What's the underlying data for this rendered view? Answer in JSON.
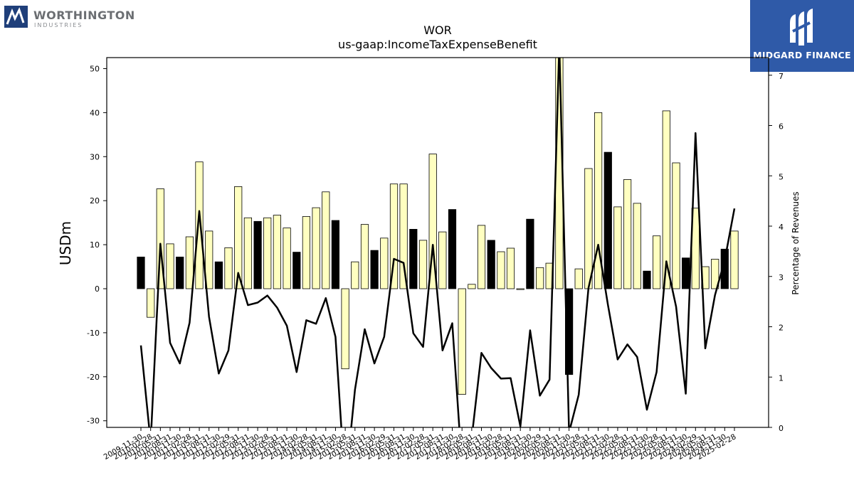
{
  "brand": {
    "name": "WORTHINGTON",
    "subtitle": "INDUSTRIES"
  },
  "badge": {
    "name": "MIDGARD FINANCE"
  },
  "chart_data": {
    "type": "bar+line",
    "title": "WOR",
    "subtitle": "us-gaap:IncomeTaxExpenseBenefit",
    "ylabel": "USDm",
    "y2label": "Percentage of Revenues",
    "ylim": [
      -31.5,
      52.5
    ],
    "y2lim": [
      0,
      7.35
    ],
    "yticks": [
      -30,
      -20,
      -10,
      0,
      10,
      20,
      30,
      40,
      50
    ],
    "y2ticks": [
      0,
      1,
      2,
      3,
      4,
      5,
      6,
      7
    ],
    "grid": false,
    "bar_colors": {
      "annual": "#000000",
      "quarter": "#ffffc0",
      "edge": "#000000"
    },
    "line_color": "#000000",
    "categories": [
      "2009-11-30",
      "2010-02-28",
      "2010-05-31",
      "2010-08-31",
      "2010-11-30",
      "2011-02-28",
      "2011-05-31",
      "2011-08-31",
      "2011-11-30",
      "2012-02-29",
      "2012-05-31",
      "2012-08-31",
      "2012-11-30",
      "2013-02-28",
      "2013-05-31",
      "2013-08-31",
      "2013-11-30",
      "2014-02-28",
      "2014-05-31",
      "2014-08-31",
      "2014-11-30",
      "2015-02-28",
      "2015-05-31",
      "2015-08-31",
      "2015-11-30",
      "2016-02-29",
      "2016-05-31",
      "2016-08-31",
      "2016-11-30",
      "2017-02-28",
      "2017-05-31",
      "2017-08-31",
      "2017-11-30",
      "2018-02-28",
      "2018-05-31",
      "2018-08-31",
      "2018-11-30",
      "2019-02-28",
      "2019-05-31",
      "2019-08-31",
      "2019-11-30",
      "2020-02-29",
      "2020-05-31",
      "2020-08-31",
      "2020-11-30",
      "2021-02-28",
      "2021-05-31",
      "2021-08-31",
      "2021-11-30",
      "2022-02-28",
      "2022-05-31",
      "2022-08-31",
      "2022-11-30",
      "2023-02-28",
      "2023-05-31",
      "2023-08-31",
      "2023-11-30",
      "2024-02-29",
      "2024-05-31",
      "2024-08-31",
      "2024-11-30",
      "2025-02-28"
    ],
    "values": [
      7.2,
      -6.5,
      22.7,
      10.2,
      7.2,
      11.8,
      28.8,
      13.1,
      6.1,
      9.3,
      23.2,
      16.1,
      15.3,
      16.1,
      16.7,
      13.8,
      8.3,
      16.4,
      18.4,
      22.0,
      15.5,
      -18.2,
      6.1,
      14.6,
      8.7,
      11.5,
      23.8,
      23.8,
      13.5,
      11.0,
      30.6,
      12.9,
      18.0,
      -24.0,
      1.0,
      14.4,
      11.0,
      8.4,
      9.2,
      -0.2,
      15.8,
      4.8,
      5.8,
      55.0,
      -19.5,
      4.5,
      27.3,
      40.0,
      31.0,
      18.6,
      24.8,
      19.4,
      4.0,
      12.0,
      40.4,
      28.6,
      7.0,
      18.3,
      5.0,
      6.7,
      9.0,
      13.1
    ],
    "annual": [
      true,
      false,
      false,
      false,
      true,
      false,
      false,
      false,
      true,
      false,
      false,
      false,
      true,
      false,
      false,
      false,
      true,
      false,
      false,
      false,
      true,
      false,
      false,
      false,
      true,
      false,
      false,
      false,
      true,
      false,
      false,
      false,
      true,
      false,
      false,
      false,
      true,
      false,
      false,
      false,
      true,
      false,
      false,
      false,
      true,
      false,
      false,
      false,
      true,
      false,
      false,
      false,
      true,
      false,
      false,
      false,
      true,
      false,
      false,
      false,
      true,
      false
    ],
    "pct": [
      1.63,
      -0.3,
      3.65,
      1.68,
      1.27,
      2.08,
      4.3,
      2.2,
      1.07,
      1.53,
      3.07,
      2.43,
      2.48,
      2.62,
      2.38,
      2.02,
      1.1,
      2.13,
      2.06,
      2.57,
      1.8,
      -1.2,
      0.75,
      1.95,
      1.27,
      1.8,
      3.35,
      3.27,
      1.87,
      1.6,
      3.63,
      1.53,
      2.07,
      -0.8,
      -0.2,
      1.48,
      1.18,
      0.97,
      0.98,
      0.02,
      1.93,
      0.63,
      0.95,
      7.6,
      -0.1,
      0.65,
      2.77,
      3.63,
      2.43,
      1.35,
      1.65,
      1.4,
      0.35,
      1.1,
      3.3,
      2.4,
      0.67,
      5.85,
      1.57,
      2.63,
      3.32,
      4.35
    ]
  }
}
